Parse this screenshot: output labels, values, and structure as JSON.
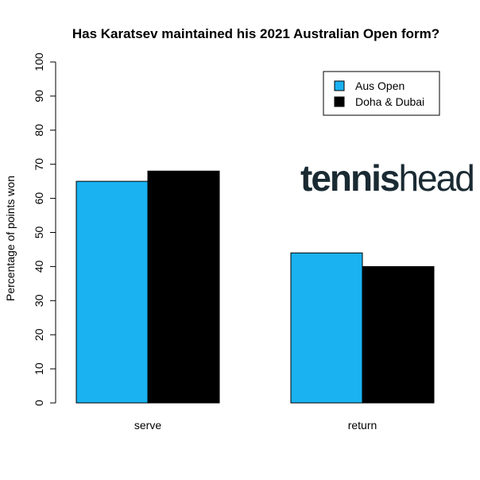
{
  "chart_data": {
    "type": "bar",
    "title": "Has Karatsev maintained his 2021 Australian Open form?",
    "y_label": "Percentage of points won",
    "categories": [
      "serve",
      "return"
    ],
    "series": [
      {
        "name": "Aus Open",
        "color": "#1ab2f0",
        "values": [
          65,
          44
        ]
      },
      {
        "name": "Doha & Dubai",
        "color": "#000000",
        "values": [
          68,
          40
        ]
      }
    ],
    "ylim": [
      0,
      100
    ],
    "yticks": [
      0,
      10,
      20,
      30,
      40,
      50,
      60,
      70,
      80,
      90,
      100
    ],
    "grid": false,
    "legend": "top-right",
    "annotations": [
      "tennis",
      "head"
    ]
  }
}
